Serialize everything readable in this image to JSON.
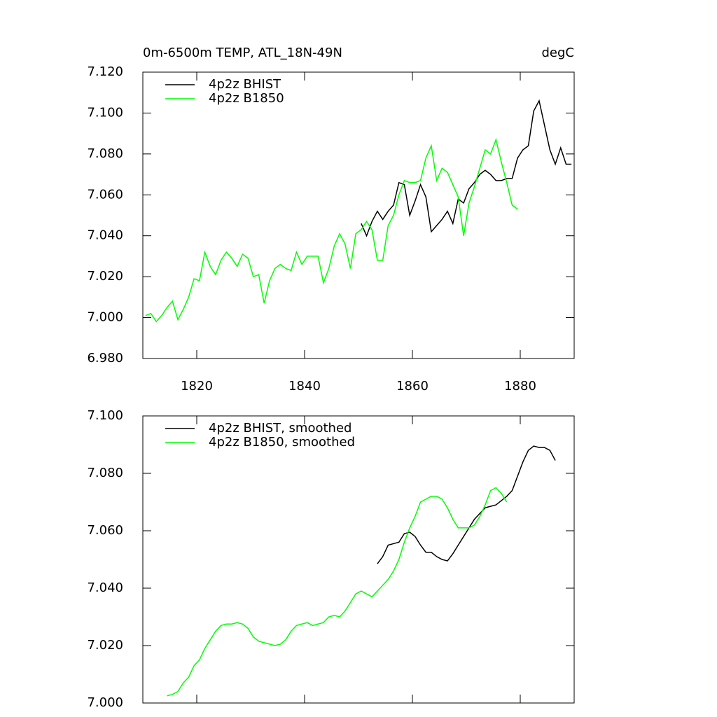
{
  "chart_data": [
    {
      "type": "line",
      "title": "0m-6500m TEMP, ATL_18N-49N",
      "units_label": "degC",
      "xlim": [
        1810,
        1890
      ],
      "xticks": [
        1820,
        1840,
        1860,
        1880
      ],
      "ylim": [
        6.98,
        7.12
      ],
      "yticks": [
        {
          "value": 6.98,
          "label": "6.980"
        },
        {
          "value": 7.0,
          "label": "7.000"
        },
        {
          "value": 7.02,
          "label": "7.020"
        },
        {
          "value": 7.04,
          "label": "7.040"
        },
        {
          "value": 7.06,
          "label": "7.060"
        },
        {
          "value": 7.08,
          "label": "7.080"
        },
        {
          "value": 7.1,
          "label": "7.100"
        },
        {
          "value": 7.12,
          "label": "7.120"
        }
      ],
      "legend": "upper-left",
      "series": [
        {
          "name": "4p2z BHIST",
          "color": "#000000",
          "x": [
            1850.5,
            1851.5,
            1852.5,
            1853.5,
            1854.5,
            1855.5,
            1856.5,
            1857.5,
            1858.5,
            1859.5,
            1860.5,
            1861.5,
            1862.5,
            1863.5,
            1864.5,
            1865.5,
            1866.5,
            1867.5,
            1868.5,
            1869.5,
            1870.5,
            1871.5,
            1872.5,
            1873.5,
            1874.5,
            1875.5,
            1876.5,
            1877.5,
            1878.5,
            1879.5,
            1880.5,
            1881.5,
            1882.5,
            1883.5,
            1884.5,
            1885.5,
            1886.5,
            1887.5,
            1888.5,
            1889.5
          ],
          "values": [
            7.046,
            7.04,
            7.047,
            7.052,
            7.048,
            7.052,
            7.055,
            7.066,
            7.065,
            7.05,
            7.057,
            7.065,
            7.059,
            7.042,
            7.045,
            7.048,
            7.052,
            7.046,
            7.058,
            7.056,
            7.063,
            7.066,
            7.07,
            7.072,
            7.07,
            7.067,
            7.067,
            7.068,
            7.068,
            7.078,
            7.082,
            7.084,
            7.101,
            7.106,
            7.094,
            7.082,
            7.075,
            7.083,
            7.075,
            7.075
          ]
        },
        {
          "name": "4p2z B1850",
          "color": "#00ff00",
          "x": [
            1810.5,
            1811.5,
            1812.5,
            1813.5,
            1814.5,
            1815.5,
            1816.5,
            1817.5,
            1818.5,
            1819.5,
            1820.5,
            1821.5,
            1822.5,
            1823.5,
            1824.5,
            1825.5,
            1826.5,
            1827.5,
            1828.5,
            1829.5,
            1830.5,
            1831.5,
            1832.5,
            1833.5,
            1834.5,
            1835.5,
            1836.5,
            1837.5,
            1838.5,
            1839.5,
            1840.5,
            1841.5,
            1842.5,
            1843.5,
            1844.5,
            1845.5,
            1846.5,
            1847.5,
            1848.5,
            1849.5,
            1850.5,
            1851.5,
            1852.5,
            1853.5,
            1854.5,
            1855.5,
            1856.5,
            1857.5,
            1858.5,
            1859.5,
            1860.5,
            1861.5,
            1862.5,
            1863.5,
            1864.5,
            1865.5,
            1866.5,
            1867.5,
            1868.5,
            1869.5,
            1870.5,
            1871.5,
            1872.5,
            1873.5,
            1874.5,
            1875.5,
            1876.5,
            1877.5,
            1878.5,
            1879.5
          ],
          "values": [
            7.001,
            7.002,
            6.998,
            7.001,
            7.005,
            7.008,
            6.999,
            7.004,
            7.01,
            7.019,
            7.018,
            7.032,
            7.025,
            7.021,
            7.028,
            7.032,
            7.029,
            7.025,
            7.031,
            7.029,
            7.02,
            7.021,
            7.007,
            7.018,
            7.024,
            7.026,
            7.024,
            7.023,
            7.032,
            7.026,
            7.03,
            7.03,
            7.03,
            7.017,
            7.024,
            7.035,
            7.041,
            7.036,
            7.024,
            7.041,
            7.043,
            7.047,
            7.043,
            7.028,
            7.028,
            7.045,
            7.05,
            7.06,
            7.067,
            7.066,
            7.066,
            7.067,
            7.078,
            7.084,
            7.067,
            7.073,
            7.071,
            7.065,
            7.059,
            7.04,
            7.056,
            7.064,
            7.073,
            7.082,
            7.08,
            7.087,
            7.076,
            7.066,
            7.055,
            7.053
          ]
        }
      ]
    },
    {
      "type": "line",
      "xlim": [
        1810,
        1890
      ],
      "xticks": [
        1820,
        1840,
        1860,
        1880
      ],
      "ylim": [
        7.0,
        7.1
      ],
      "yticks": [
        {
          "value": 7.0,
          "label": "7.000"
        },
        {
          "value": 7.02,
          "label": "7.020"
        },
        {
          "value": 7.04,
          "label": "7.040"
        },
        {
          "value": 7.06,
          "label": "7.060"
        },
        {
          "value": 7.08,
          "label": "7.080"
        },
        {
          "value": 7.1,
          "label": "7.100"
        }
      ],
      "legend": "upper-left",
      "series": [
        {
          "name": "4p2z BHIST, smoothed",
          "color": "#000000",
          "x": [
            1853.5,
            1854.5,
            1855.5,
            1856.5,
            1857.5,
            1858.5,
            1859.5,
            1860.5,
            1861.5,
            1862.5,
            1863.5,
            1864.5,
            1865.5,
            1866.5,
            1867.5,
            1868.5,
            1869.5,
            1870.5,
            1871.5,
            1872.5,
            1873.5,
            1874.5,
            1875.5,
            1876.5,
            1877.5,
            1878.5,
            1879.5,
            1880.5,
            1881.5,
            1882.5,
            1883.5,
            1884.5,
            1885.5,
            1886.5
          ],
          "values": [
            7.0485,
            7.051,
            7.055,
            7.0555,
            7.056,
            7.059,
            7.0595,
            7.058,
            7.055,
            7.0525,
            7.0525,
            7.051,
            7.05,
            7.0495,
            7.052,
            7.055,
            7.058,
            7.061,
            7.064,
            7.066,
            7.068,
            7.0685,
            7.069,
            7.0705,
            7.072,
            7.074,
            7.079,
            7.084,
            7.088,
            7.0895,
            7.089,
            7.089,
            7.088,
            7.0845
          ]
        },
        {
          "name": "4p2z B1850, smoothed",
          "color": "#00ff00",
          "x": [
            1814.5,
            1815.5,
            1816.5,
            1817.5,
            1818.5,
            1819.5,
            1820.5,
            1821.5,
            1822.5,
            1823.5,
            1824.5,
            1825.5,
            1826.5,
            1827.5,
            1828.5,
            1829.5,
            1830.5,
            1831.5,
            1832.5,
            1833.5,
            1834.5,
            1835.5,
            1836.5,
            1837.5,
            1838.5,
            1839.5,
            1840.5,
            1841.5,
            1842.5,
            1843.5,
            1844.5,
            1845.5,
            1846.5,
            1847.5,
            1848.5,
            1849.5,
            1850.5,
            1851.5,
            1852.5,
            1853.5,
            1854.5,
            1855.5,
            1856.5,
            1857.5,
            1858.5,
            1859.5,
            1860.5,
            1861.5,
            1862.5,
            1863.5,
            1864.5,
            1865.5,
            1866.5,
            1867.5,
            1868.5,
            1869.5,
            1870.5,
            1871.5,
            1872.5,
            1873.5,
            1874.5,
            1875.5,
            1876.5,
            1877.5
          ],
          "values": [
            7.0025,
            7.003,
            7.004,
            7.007,
            7.009,
            7.013,
            7.015,
            7.019,
            7.022,
            7.025,
            7.027,
            7.0275,
            7.0275,
            7.028,
            7.0275,
            7.026,
            7.023,
            7.0215,
            7.021,
            7.0205,
            7.02,
            7.0205,
            7.022,
            7.025,
            7.027,
            7.0275,
            7.028,
            7.027,
            7.0275,
            7.028,
            7.03,
            7.0305,
            7.03,
            7.032,
            7.035,
            7.038,
            7.039,
            7.038,
            7.037,
            7.039,
            7.041,
            7.043,
            7.046,
            7.05,
            7.056,
            7.061,
            7.065,
            7.07,
            7.071,
            7.072,
            7.072,
            7.071,
            7.068,
            7.064,
            7.061,
            7.061,
            7.061,
            7.062,
            7.065,
            7.069,
            7.074,
            7.075,
            7.073,
            7.07
          ]
        }
      ]
    }
  ]
}
